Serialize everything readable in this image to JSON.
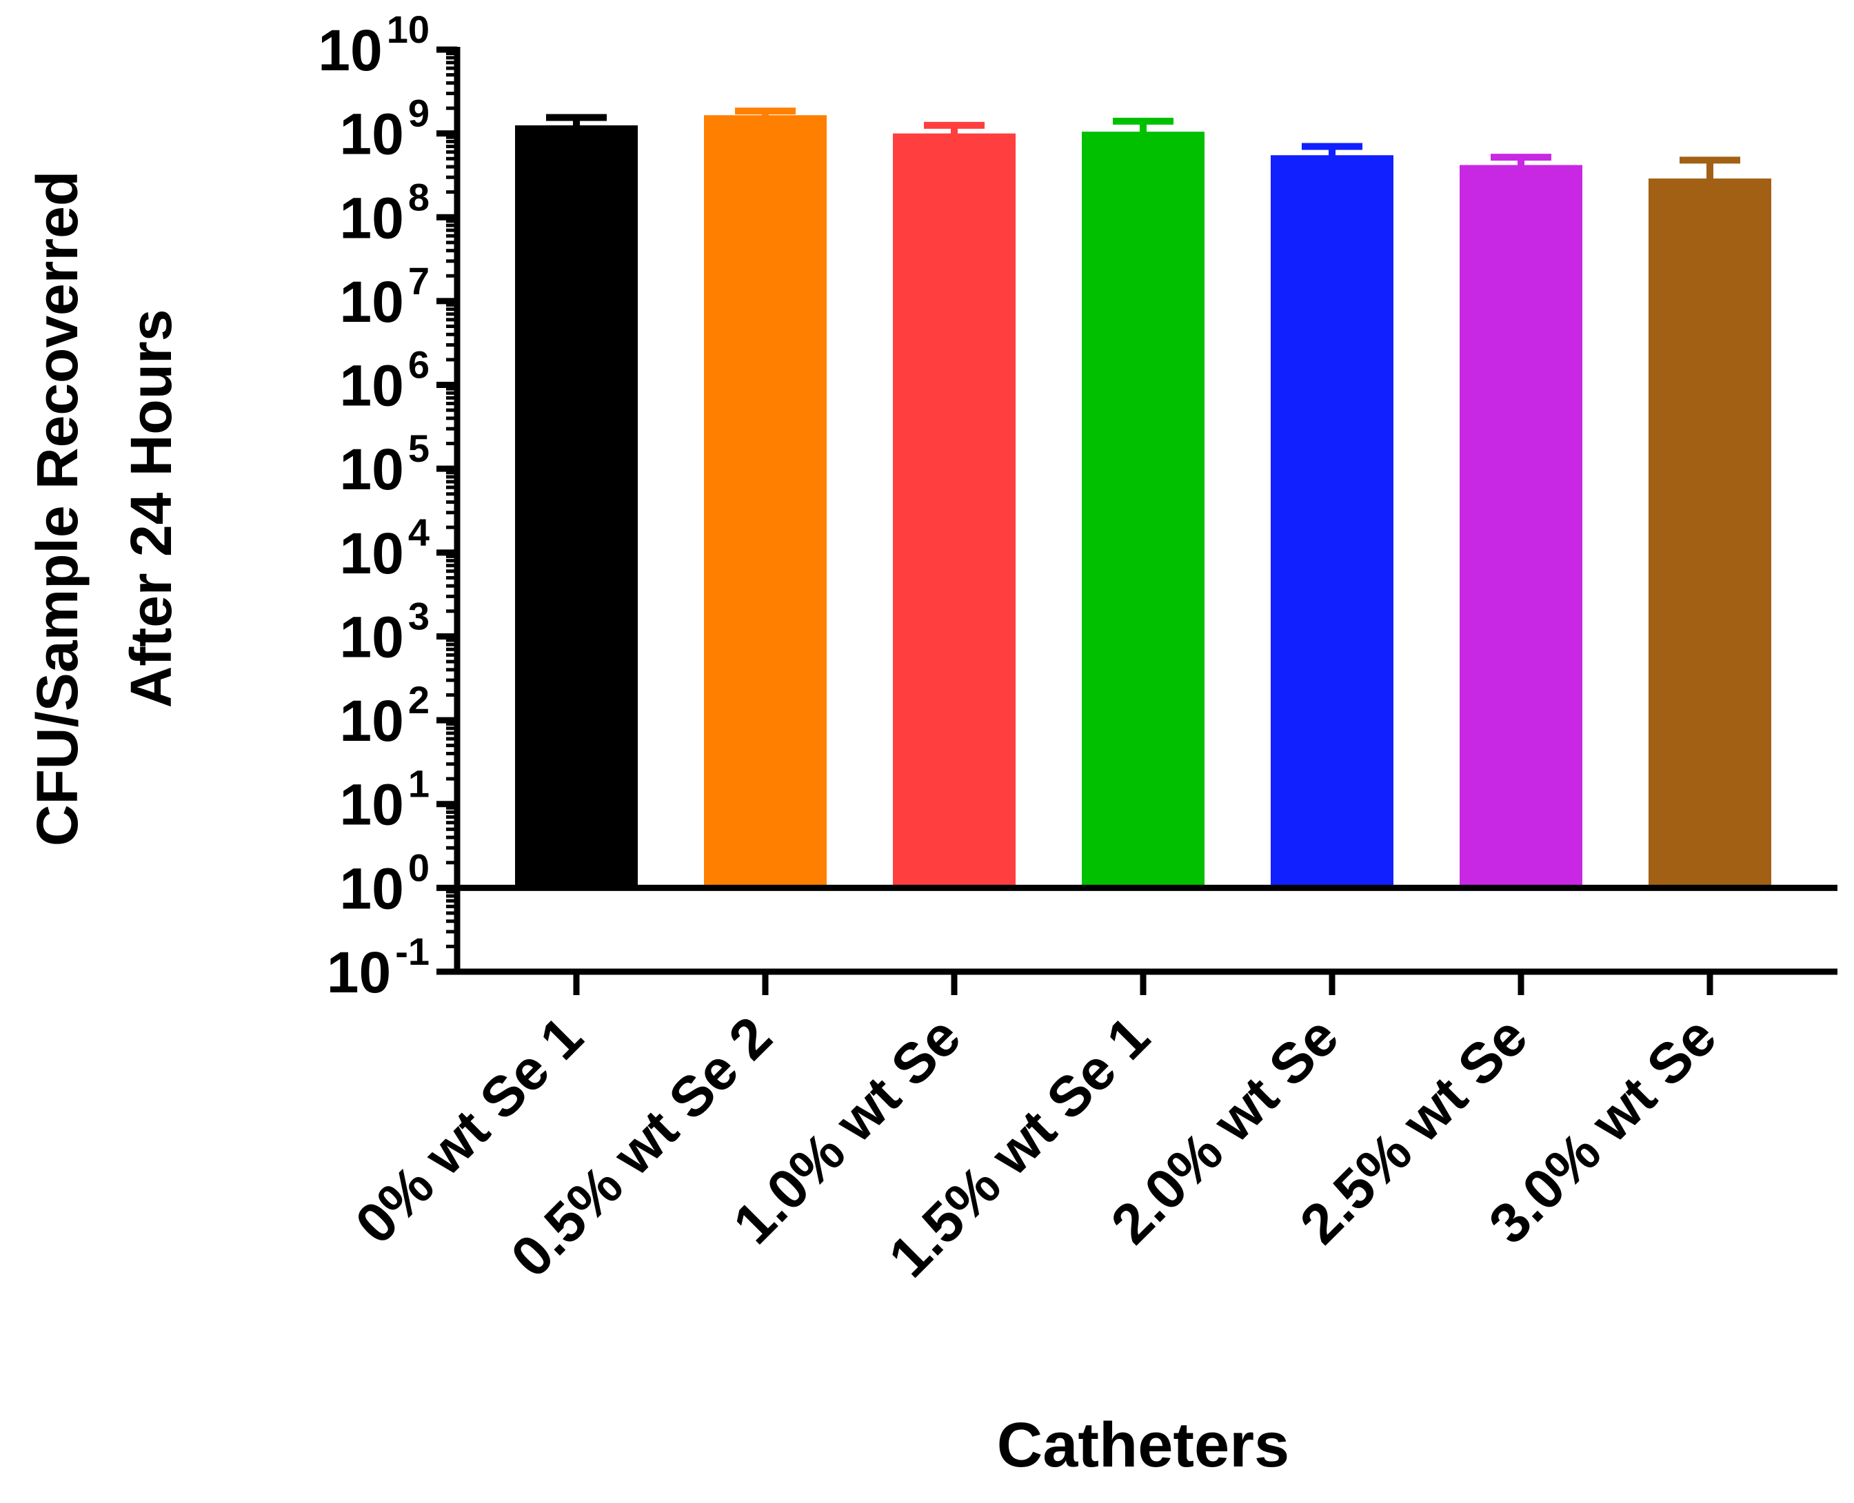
{
  "chart_data": {
    "type": "bar",
    "scale": "log10",
    "title": "",
    "ylabel_line1": "CFU/Sample Recoverred",
    "ylabel_line2": "After 24 Hours",
    "xlabel": "Catheters",
    "ylim": [
      0.1,
      10000000000
    ],
    "yticks": [
      {
        "base": "10",
        "exp": "10",
        "value": 10000000000
      },
      {
        "base": "10",
        "exp": "9",
        "value": 1000000000
      },
      {
        "base": "10",
        "exp": "8",
        "value": 100000000
      },
      {
        "base": "10",
        "exp": "7",
        "value": 10000000
      },
      {
        "base": "10",
        "exp": "6",
        "value": 1000000
      },
      {
        "base": "10",
        "exp": "5",
        "value": 100000
      },
      {
        "base": "10",
        "exp": "4",
        "value": 10000
      },
      {
        "base": "10",
        "exp": "3",
        "value": 1000
      },
      {
        "base": "10",
        "exp": "2",
        "value": 100
      },
      {
        "base": "10",
        "exp": "1",
        "value": 10
      },
      {
        "base": "10",
        "exp": "0",
        "value": 1
      },
      {
        "base": "10",
        "exp": "-1",
        "value": 0.1
      }
    ],
    "baseline_value": 1,
    "categories": [
      "0% wt Se 1",
      "0.5% wt Se 2",
      "1.0% wt Se",
      "1.5% wt Se 1",
      "2.0% wt Se",
      "2.5% wt Se",
      "3.0% wt Se"
    ],
    "values": [
      1250000000,
      1650000000,
      1000000000,
      1050000000,
      550000000,
      420000000,
      290000000
    ],
    "error_upper": [
      1550000000,
      1850000000,
      1250000000,
      1400000000,
      700000000,
      520000000,
      480000000
    ],
    "colors": [
      "#000000",
      "#ff8000",
      "#ff3f3f",
      "#00c000",
      "#1020ff",
      "#c828e4",
      "#a26015"
    ]
  }
}
